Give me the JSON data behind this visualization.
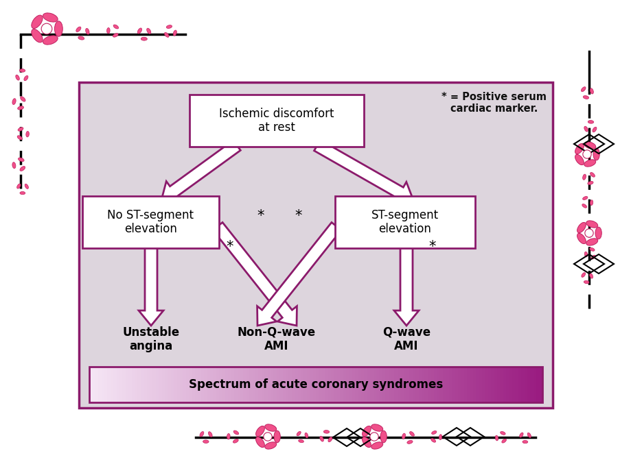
{
  "bg_color": "#ddd5dd",
  "box_outline": "#8b1a6b",
  "box_fill": "#ffffff",
  "arrow_color": "#8b1a6b",
  "spectrum_text": "Spectrum of acute coronary syndromes",
  "top_box_text": "Ischemic discomfort\nat rest",
  "left_box_text": "No ST-segment\nelevation",
  "right_box_text": "ST-segment\nelevation",
  "label1": "Unstable\nangina",
  "label2": "Non-Q-wave\nAMI",
  "label3": "Q-wave\nAMI",
  "annotation": "* = Positive serum\ncardiac marker.",
  "figure_bg": "#ffffff",
  "flower_color": "#f0508a",
  "flower_edge": "#c02060"
}
